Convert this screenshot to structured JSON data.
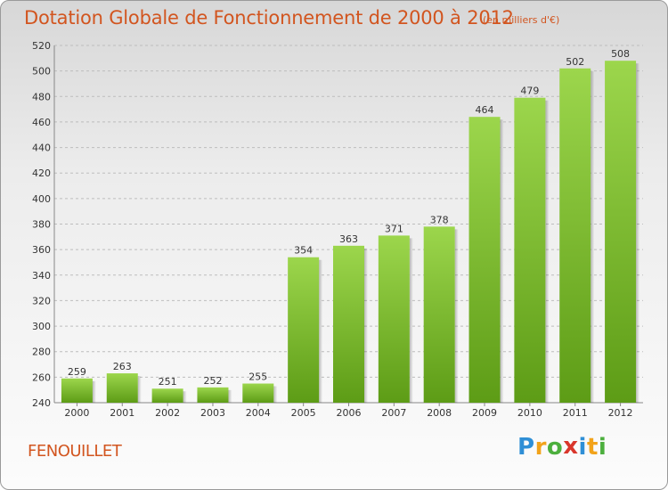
{
  "header": {
    "title": "Dotation Globale de Fonctionnement de 2000 à 2012",
    "unit": "(en milliers d'€)"
  },
  "footer": {
    "commune": "FENOUILLET",
    "brand": {
      "text": "Proxiti",
      "letters": [
        {
          "char": "P",
          "color": "#2f8fd6"
        },
        {
          "char": "r",
          "color": "#f2a31a"
        },
        {
          "char": "o",
          "color": "#4caf3d"
        },
        {
          "char": "x",
          "color": "#d9362b"
        },
        {
          "char": "i",
          "color": "#2f8fd6"
        },
        {
          "char": "t",
          "color": "#f2a31a"
        },
        {
          "char": "i",
          "color": "#4caf3d"
        }
      ]
    }
  },
  "colors": {
    "bar_top": "#9cd64c",
    "bar_bottom": "#5d9c16",
    "title": "#d2551f",
    "grid": "#bdbdbd"
  },
  "chart_data": {
    "type": "bar",
    "categories": [
      "2000",
      "2001",
      "2002",
      "2003",
      "2004",
      "2005",
      "2006",
      "2007",
      "2008",
      "2009",
      "2010",
      "2011",
      "2012"
    ],
    "values": [
      259,
      263,
      251,
      252,
      255,
      354,
      363,
      371,
      378,
      464,
      479,
      502,
      508
    ],
    "ylim": [
      240,
      520
    ],
    "yticks": [
      240,
      260,
      280,
      300,
      320,
      340,
      360,
      380,
      400,
      420,
      440,
      460,
      480,
      500,
      520
    ],
    "grid": true,
    "data_labels": true
  }
}
